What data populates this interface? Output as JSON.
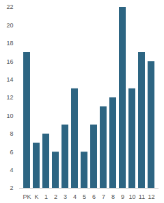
{
  "chart_data": {
    "type": "bar",
    "categories": [
      "PK",
      "K",
      "1",
      "2",
      "3",
      "4",
      "5",
      "6",
      "7",
      "8",
      "9",
      "10",
      "11",
      "12"
    ],
    "values": [
      17,
      7,
      8,
      6,
      9,
      13,
      6,
      9,
      11,
      12,
      22,
      13,
      17,
      16
    ],
    "color": "#2d6582",
    "ylim": [
      2,
      22
    ],
    "yticks": [
      2,
      4,
      6,
      8,
      10,
      12,
      14,
      16,
      18,
      20,
      22
    ],
    "grid": false
  }
}
